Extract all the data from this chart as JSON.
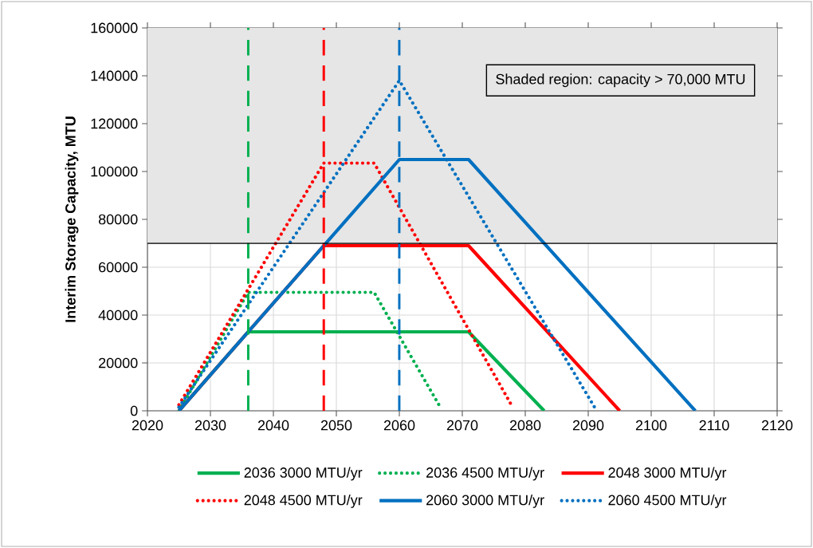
{
  "chart_data": {
    "type": "line",
    "ylabel": "Interim Storage Capacity, MTU",
    "xlim": [
      2020,
      2120
    ],
    "xticks": [
      2020,
      2030,
      2040,
      2050,
      2060,
      2070,
      2080,
      2090,
      2100,
      2110,
      2120
    ],
    "ylim": [
      0,
      160000
    ],
    "yticks": [
      0,
      20000,
      40000,
      60000,
      80000,
      100000,
      120000,
      140000,
      160000
    ],
    "grid": true,
    "legend": "bottom",
    "marker": "none",
    "series": [
      {
        "name": "2036 3000 MTU/yr",
        "color": "#00b050",
        "line_style": "solid",
        "x": [
          2025,
          2036,
          2071,
          2083
        ],
        "values": [
          0,
          33000,
          33000,
          0
        ]
      },
      {
        "name": "2036 4500 MTU/yr",
        "color": "#00b050",
        "line_style": "dotted",
        "x": [
          2025,
          2036,
          2056,
          2066.5
        ],
        "values": [
          0,
          49500,
          49500,
          1500
        ]
      },
      {
        "name": "2048 3000 MTU/yr",
        "color": "#ff0000",
        "line_style": "solid",
        "x": [
          2025,
          2048,
          2071,
          2095
        ],
        "values": [
          0,
          69000,
          69000,
          0
        ]
      },
      {
        "name": "2048 4500 MTU/yr",
        "color": "#ff0000",
        "line_style": "dotted",
        "x": [
          2025,
          2048,
          2056,
          2078
        ],
        "values": [
          2500,
          103500,
          103500,
          1500
        ]
      },
      {
        "name": "2060 3000 MTU/yr",
        "color": "#0070c0",
        "line_style": "solid",
        "x": [
          2025,
          2060,
          2071,
          2107
        ],
        "values": [
          0,
          105000,
          105000,
          0
        ]
      },
      {
        "name": "2060 4500 MTU/yr",
        "color": "#0070c0",
        "line_style": "dotted",
        "x": [
          2025,
          2060,
          2091
        ],
        "values": [
          1500,
          138000,
          1500
        ]
      }
    ],
    "ref_lines": [
      {
        "axis": "x",
        "value": 2036,
        "color": "#00b050",
        "line_style": "dashed"
      },
      {
        "axis": "x",
        "value": 2048,
        "color": "#ff0000",
        "line_style": "dashed"
      },
      {
        "axis": "x",
        "value": 2060,
        "color": "#0070c0",
        "line_style": "dashed"
      },
      {
        "axis": "y",
        "value": 70000,
        "color": "#000000",
        "line_style": "solid"
      }
    ],
    "bands": [
      {
        "axis": "y",
        "from": 70000,
        "to": 160000,
        "label": "Shaded region: capacity > 70,000 MTU",
        "color": "#e6e6e6"
      }
    ]
  }
}
